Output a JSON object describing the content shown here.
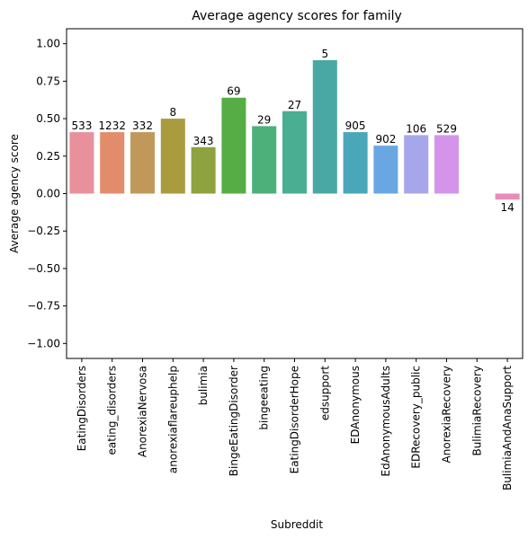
{
  "chart_data": {
    "type": "bar",
    "title": "Average agency scores for family",
    "xlabel": "Subreddit",
    "ylabel": "Average agency score",
    "ylim": [
      -1.1,
      1.1
    ],
    "yticks": [
      -1.0,
      -0.75,
      -0.5,
      -0.25,
      0.0,
      0.25,
      0.5,
      0.75,
      1.0
    ],
    "ytick_labels": [
      "−1.00",
      "−0.75",
      "−0.50",
      "−0.25",
      "0.00",
      "0.25",
      "0.50",
      "0.75",
      "1.00"
    ],
    "grid": false,
    "categories": [
      "EatingDisorders",
      "eating_disorders",
      "AnorexiaNervosa",
      "anorexiaflareuphelp",
      "bulimia",
      "BingeEatingDisorder",
      "bingeeating",
      "EatingDisorderHope",
      "edsupport",
      "EDAnonymous",
      "EdAnonymousAdults",
      "EDRecovery_public",
      "AnorexiaRecovery",
      "BulimiaRecovery",
      "BulimiaAndAnaSupport"
    ],
    "values": [
      0.41,
      0.41,
      0.41,
      0.5,
      0.31,
      0.64,
      0.45,
      0.55,
      0.89,
      0.41,
      0.32,
      0.39,
      0.39,
      null,
      -0.04
    ],
    "counts": [
      "533",
      "1232",
      "332",
      "8",
      "343",
      "69",
      "29",
      "27",
      "5",
      "905",
      "902",
      "106",
      "529",
      "",
      "14"
    ],
    "colors": [
      "#e8919c",
      "#e38c6c",
      "#c0995a",
      "#a89c3f",
      "#8ea23f",
      "#57ad45",
      "#4db07a",
      "#4aae93",
      "#4aa8a4",
      "#4aa6b9",
      "#6aa7e2",
      "#a8a6ea",
      "#d494ea",
      "#e58dd3",
      "#e88cb9"
    ]
  }
}
